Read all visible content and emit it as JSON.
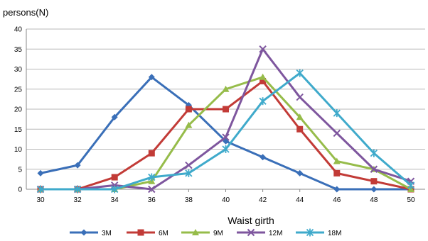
{
  "chart_data": {
    "type": "line",
    "ylabel": "persons(N)",
    "xlabel": "Waist girth",
    "x": [
      30,
      32,
      34,
      36,
      38,
      40,
      42,
      44,
      46,
      48,
      50
    ],
    "xlim": [
      30,
      50
    ],
    "ylim": [
      0,
      40
    ],
    "yticks": [
      0,
      5,
      10,
      15,
      20,
      25,
      30,
      35,
      40
    ],
    "grid": "horizontal",
    "legend": "bottom",
    "series": [
      {
        "name": "3M",
        "color": "#3A6FB8",
        "marker": "diamond",
        "values": [
          4,
          6,
          18,
          28,
          21,
          12,
          8,
          4,
          0,
          0,
          0
        ]
      },
      {
        "name": "6M",
        "color": "#C23B37",
        "marker": "square",
        "values": [
          0,
          0,
          3,
          9,
          20,
          20,
          27,
          15,
          4,
          2,
          0
        ]
      },
      {
        "name": "9M",
        "color": "#96BC4A",
        "marker": "triangle",
        "values": [
          0,
          0,
          0,
          2,
          16,
          25,
          28,
          18,
          7,
          5,
          0
        ]
      },
      {
        "name": "12M",
        "color": "#7E569E",
        "marker": "x",
        "values": [
          0,
          0,
          1,
          0,
          6,
          13,
          35,
          23,
          14,
          5,
          2
        ]
      },
      {
        "name": "18M",
        "color": "#3FAACB",
        "marker": "star",
        "values": [
          0,
          0,
          0,
          3,
          4,
          10,
          22,
          29,
          19,
          9,
          1
        ]
      }
    ]
  }
}
